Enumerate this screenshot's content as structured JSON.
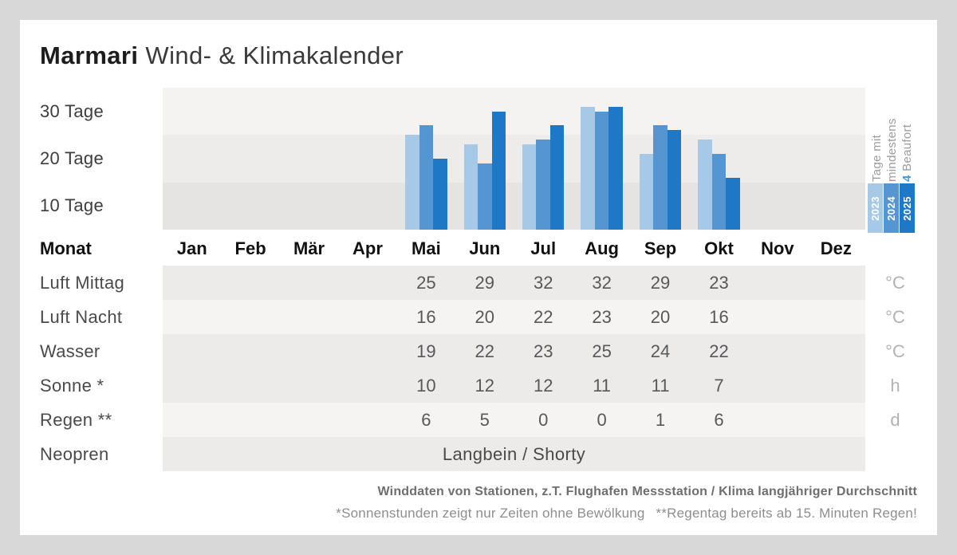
{
  "title": {
    "brand": "Marmari",
    "rest": "Wind- & Klimakalender"
  },
  "chart_data": {
    "type": "bar",
    "title": "Tage mit mindestens 4 Beaufort",
    "categories": [
      "Jan",
      "Feb",
      "Mär",
      "Apr",
      "Mai",
      "Jun",
      "Jul",
      "Aug",
      "Sep",
      "Okt",
      "Nov",
      "Dez"
    ],
    "series": [
      {
        "name": "2023",
        "color": "#A6C9E7",
        "values": [
          null,
          null,
          null,
          null,
          20,
          18,
          18,
          26,
          16,
          19,
          null,
          null
        ]
      },
      {
        "name": "2024",
        "color": "#5596D2",
        "values": [
          null,
          null,
          null,
          null,
          22,
          14,
          19,
          25,
          22,
          16,
          null,
          null
        ]
      },
      {
        "name": "2025",
        "color": "#1F78C6",
        "values": [
          null,
          null,
          null,
          null,
          15,
          25,
          22,
          26,
          21,
          11,
          null,
          null
        ]
      }
    ],
    "ylabel_ticks": [
      "30 Tage",
      "20 Tage",
      "10 Tage"
    ],
    "ylim": [
      0,
      30
    ],
    "grid": "banded",
    "legend_position": "right",
    "legend": {
      "line1": "Tage mit",
      "line2": "mindestens",
      "line3_num": "4",
      "line3_rest": " Beaufort"
    }
  },
  "table": {
    "header_label": "Monat",
    "units_column": [
      "°C",
      "°C",
      "°C",
      "h",
      "d",
      ""
    ],
    "rows": [
      {
        "label": "Luft Mittag",
        "unit": "°C",
        "shade": "dark",
        "values": [
          null,
          null,
          null,
          null,
          25,
          29,
          32,
          32,
          29,
          23,
          null,
          null
        ]
      },
      {
        "label": "Luft Nacht",
        "unit": "°C",
        "shade": "light",
        "values": [
          null,
          null,
          null,
          null,
          16,
          20,
          22,
          23,
          20,
          16,
          null,
          null
        ]
      },
      {
        "label": "Wasser",
        "unit": "°C",
        "shade": "dark",
        "values": [
          null,
          null,
          null,
          null,
          19,
          22,
          23,
          25,
          24,
          22,
          null,
          null
        ]
      },
      {
        "label": "Sonne *",
        "unit": "h",
        "shade": "dark",
        "values": [
          null,
          null,
          null,
          null,
          10,
          12,
          12,
          11,
          11,
          7,
          null,
          null
        ]
      },
      {
        "label": "Regen **",
        "unit": "d",
        "shade": "light",
        "values": [
          null,
          null,
          null,
          null,
          6,
          5,
          0,
          0,
          1,
          6,
          null,
          null
        ]
      },
      {
        "label": "Neopren",
        "unit": "",
        "shade": "dark",
        "span_value": "Langbein / Shorty"
      }
    ]
  },
  "footer": {
    "line1": "Winddaten von Stationen, z.T. Flughafen Messstation / Klima langjähriger Durchschnitt",
    "note_sun": "*Sonnenstunden zeigt nur Zeiten ohne Bewölkung",
    "note_rain": "**Regentag bereits ab 15. Minuten Regen!"
  }
}
